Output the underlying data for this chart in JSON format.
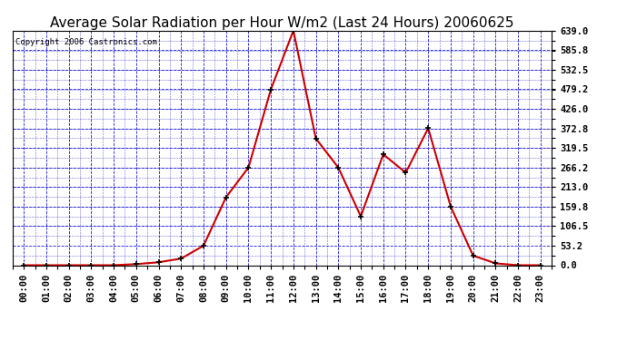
{
  "title": "Average Solar Radiation per Hour W/m2 (Last 24 Hours) 20060625",
  "copyright": "Copyright 2006 Castronics.com",
  "hours": [
    "00:00",
    "01:00",
    "02:00",
    "03:00",
    "04:00",
    "05:00",
    "06:00",
    "07:00",
    "08:00",
    "09:00",
    "10:00",
    "11:00",
    "12:00",
    "13:00",
    "14:00",
    "15:00",
    "16:00",
    "17:00",
    "18:00",
    "19:00",
    "20:00",
    "21:00",
    "22:00",
    "23:00"
  ],
  "values": [
    0,
    0,
    0,
    0,
    0,
    3,
    8,
    18,
    53,
    185,
    266,
    479,
    639,
    345,
    266,
    133,
    302,
    252,
    373,
    160,
    26,
    5,
    0,
    0
  ],
  "line_color": "#cc0000",
  "marker_color": "#000000",
  "bg_color": "#ffffff",
  "grid_color": "#0000cc",
  "axis_label_color": "#000000",
  "yticks": [
    0.0,
    53.2,
    106.5,
    159.8,
    213.0,
    266.2,
    319.5,
    372.8,
    426.0,
    479.2,
    532.5,
    585.8,
    639.0
  ],
  "ymax": 639.0,
  "ymin": 0.0,
  "title_fontsize": 11,
  "tick_fontsize": 7.5,
  "copyright_fontsize": 6.5
}
